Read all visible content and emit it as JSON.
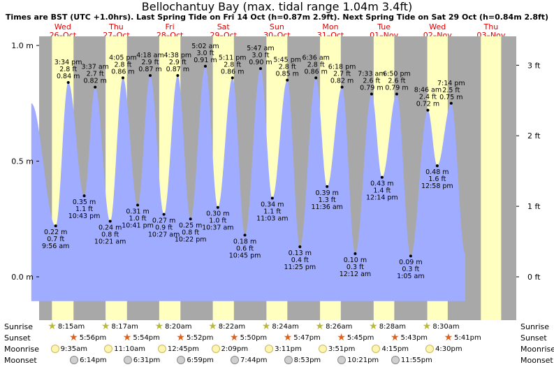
{
  "title": "Bellochantuy Bay (max. tidal range 1.04m 3.4ft)",
  "subtitle": "Times are BST (UTC +1.0hrs). Last Spring Tide on Fri 14 Oct (h=0.87m 2.9ft). Next Spring Tide on Sat 29 Oct (h=0.84m 2.8ft)",
  "colors": {
    "night": "#a8a8a8",
    "day": "#ffffc0",
    "water": "#a0acff",
    "text": "#000000",
    "dayLabel": "#dd0000"
  },
  "days": [
    {
      "dow": "Wed",
      "date": "26–Oct"
    },
    {
      "dow": "Thu",
      "date": "27–Oct"
    },
    {
      "dow": "Fri",
      "date": "28–Oct"
    },
    {
      "dow": "Sat",
      "date": "29–Oct"
    },
    {
      "dow": "Sun",
      "date": "30–Oct"
    },
    {
      "dow": "Mon",
      "date": "31–Oct"
    },
    {
      "dow": "Tue",
      "date": "01–Nov"
    },
    {
      "dow": "Wed",
      "date": "02–Nov"
    },
    {
      "dow": "Thu",
      "date": "03–Nov"
    }
  ],
  "chart_data": {
    "type": "area",
    "title": "Bellochantuy Bay (max. tidal range 1.04m 3.4ft)",
    "y_left_ticks": [
      "0.0 m",
      "0.5 m",
      "1.0 m"
    ],
    "y_right_ticks": [
      "0 ft",
      "1 ft",
      "2 ft",
      "3 ft"
    ],
    "x_range_hours": [
      0,
      210
    ],
    "y_range_m": [
      -0.1,
      1.0
    ],
    "points": [
      {
        "t": -1.0,
        "m": 0.75
      },
      {
        "t": 9.93,
        "m": 0.22,
        "ft": "0.7 ft",
        "time": "9:56 am"
      },
      {
        "t": 15.57,
        "m": 0.84,
        "ft": "2.8 ft",
        "time": "3:34 pm"
      },
      {
        "t": 22.72,
        "m": 0.35,
        "ft": "1.1 ft",
        "time": "10:43 pm"
      },
      {
        "t": 27.62,
        "m": 0.82,
        "ft": "2.7 ft",
        "time": "3:37 am"
      },
      {
        "t": 34.35,
        "m": 0.24,
        "ft": "0.8 ft",
        "time": "10:21 am"
      },
      {
        "t": 40.08,
        "m": 0.86,
        "ft": "2.8 ft",
        "time": "4:05 pm"
      },
      {
        "t": 46.68,
        "m": 0.31,
        "ft": "1.0 ft",
        "time": "10:41 pm"
      },
      {
        "t": 52.3,
        "m": 0.87,
        "ft": "2.9 ft",
        "time": "4:18 am"
      },
      {
        "t": 58.45,
        "m": 0.27,
        "ft": "0.9 ft",
        "time": "10:27 am"
      },
      {
        "t": 64.63,
        "m": 0.87,
        "ft": "2.9 ft",
        "time": "4:38 pm"
      },
      {
        "t": 70.37,
        "m": 0.25,
        "ft": "0.8 ft",
        "time": "10:22 pm"
      },
      {
        "t": 77.03,
        "m": 0.91,
        "ft": "3.0 ft",
        "time": "5:02 am"
      },
      {
        "t": 82.62,
        "m": 0.3,
        "ft": "1.0 ft",
        "time": "10:37 am"
      },
      {
        "t": 89.18,
        "m": 0.86,
        "ft": "2.8 ft",
        "time": "5:11 pm"
      },
      {
        "t": 94.75,
        "m": 0.18,
        "ft": "0.6 ft",
        "time": "10:45 pm"
      },
      {
        "t": 101.78,
        "m": 0.9,
        "ft": "3.0 ft",
        "time": "5:47 am"
      },
      {
        "t": 107.05,
        "m": 0.34,
        "ft": "1.1 ft",
        "time": "11:03 am"
      },
      {
        "t": 113.75,
        "m": 0.85,
        "ft": "2.8 ft",
        "time": "5:45 pm"
      },
      {
        "t": 119.42,
        "m": 0.13,
        "ft": "0.4 ft",
        "time": "11:25 pm"
      },
      {
        "t": 126.6,
        "m": 0.86,
        "ft": "2.8 ft",
        "time": "6:36 am"
      },
      {
        "t": 131.6,
        "m": 0.39,
        "ft": "1.3 ft",
        "time": "11:36 am"
      },
      {
        "t": 138.3,
        "m": 0.82,
        "ft": "2.7 ft",
        "time": "6:18 pm"
      },
      {
        "t": 144.2,
        "m": 0.1,
        "ft": "0.3 ft",
        "time": "12:12 am"
      },
      {
        "t": 151.55,
        "m": 0.79,
        "ft": "2.6 ft",
        "time": "7:33 am"
      },
      {
        "t": 156.23,
        "m": 0.43,
        "ft": "1.4 ft",
        "time": "12:14 pm"
      },
      {
        "t": 162.83,
        "m": 0.79,
        "ft": "2.6 ft",
        "time": "6:50 pm"
      },
      {
        "t": 169.08,
        "m": 0.09,
        "ft": "0.3 ft",
        "time": "1:05 am"
      },
      {
        "t": 176.77,
        "m": 0.72,
        "ft": "2.4 ft",
        "time": "8:46 am"
      },
      {
        "t": 180.97,
        "m": 0.48,
        "ft": "1.6 ft",
        "time": "12:58 pm"
      },
      {
        "t": 187.23,
        "m": 0.75,
        "ft": "2.5 ft",
        "time": "7:14 pm"
      },
      {
        "t": 193.5,
        "m": 0.1
      }
    ]
  },
  "rows": {
    "sunrise": {
      "label": "Sunrise",
      "times": [
        "8:15am",
        "8:17am",
        "8:20am",
        "8:22am",
        "8:24am",
        "8:26am",
        "8:28am",
        "8:30am"
      ]
    },
    "sunset": {
      "label": "Sunset",
      "times": [
        "5:56pm",
        "5:54pm",
        "5:52pm",
        "5:50pm",
        "5:47pm",
        "5:45pm",
        "5:43pm",
        "5:41pm"
      ]
    },
    "moonrise": {
      "label": "Moonrise",
      "times": [
        "9:35am",
        "11:10am",
        "12:45pm",
        "2:09pm",
        "3:11pm",
        "3:51pm",
        "4:15pm",
        "4:30pm"
      ]
    },
    "moonset": {
      "label": "Moonset",
      "times": [
        "6:14pm",
        "6:31pm",
        "6:59pm",
        "7:44pm",
        "8:53pm",
        "10:21pm",
        "11:55pm"
      ]
    }
  }
}
